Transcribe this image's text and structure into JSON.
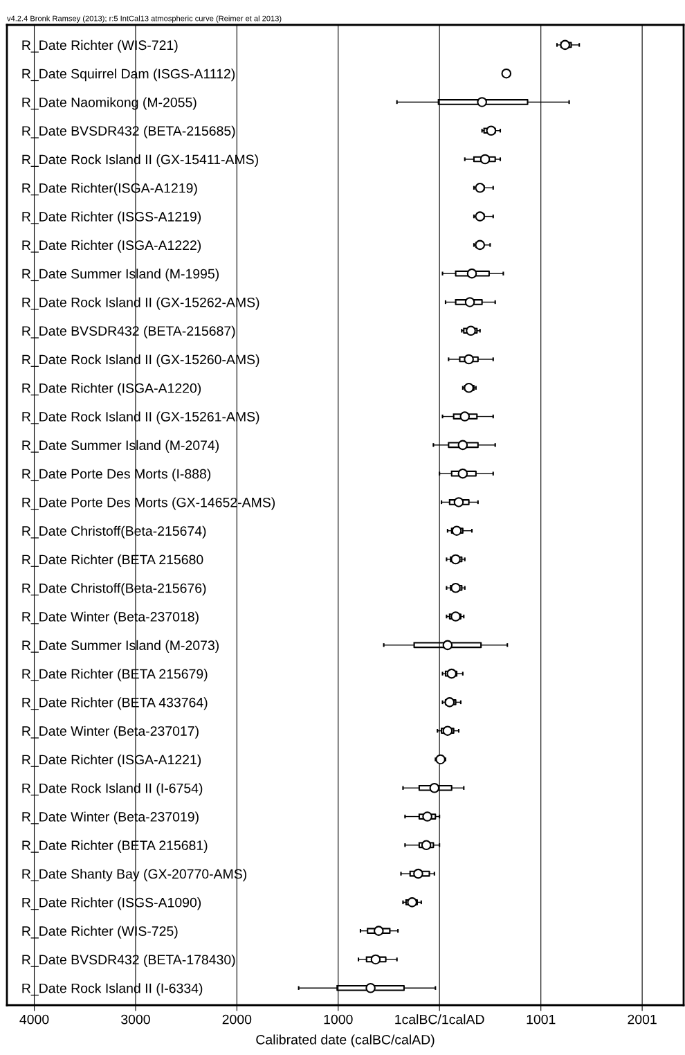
{
  "chart_data": {
    "type": "box",
    "orientation": "horizontal",
    "title": "v4.2.4 Bronk Ramsey (2013); r:5 IntCal13 atmospheric curve (Reimer et al 2013)",
    "xlabel": "Calibrated date (calBC/calAD)",
    "categories": [
      "R_Date Richter (WIS-721)",
      "R_Date Squirrel Dam (ISGS-A1112)",
      "R_Date Naomikong (M-2055)",
      "R_Date BVSDR432 (BETA-215685)",
      "R_Date Rock Island II (GX-15411-AMS)",
      "R_Date Richter(ISGA-A1219)",
      "R_Date Richter (ISGS-A1219)",
      "R_Date Richter (ISGA-A1222)",
      "R_Date Summer Island (M-1995)",
      "R_Date Rock Island II (GX-15262-AMS)",
      "R_Date BVSDR432 (BETA-215687)",
      "R_Date Rock Island II (GX-15260-AMS)",
      "R_Date Richter (ISGA-A1220)",
      "R_Date Rock Island II (GX-15261-AMS)",
      "R_Date Summer Island (M-2074)",
      "R_Date Porte Des Morts (I-888)",
      "R_Date Porte Des Morts (GX-14652-AMS)",
      "R_Date Christoff(Beta-215674)",
      "R_Date Richter (BETA 215680",
      "R_Date Christoff(Beta-215676)",
      "R_Date Winter (Beta-237018)",
      "R_Date Summer Island (M-2073)",
      "R_Date Richter (BETA 215679)",
      "R_Date Richter (BETA 433764)",
      "R_Date Winter (Beta-237017)",
      "R_Date Richter (ISGA-A1221)",
      "R_Date Rock Island II (I-6754)",
      "R_Date Winter (Beta-237019)",
      "R_Date Richter (BETA 215681)",
      "R_Date Shanty Bay (GX-20770-AMS)",
      "R_Date Richter (ISGS-A1090)",
      "R_Date Richter (WIS-725)",
      "R_Date BVSDR432 (BETA-178430)",
      "R_Date Rock Island II (I-6334)"
    ],
    "boxes": [
      {
        "low": 1160,
        "q1": 1200,
        "median": 1240,
        "mean": 1240,
        "q3": 1300,
        "high": 1380
      },
      {
        "low": 630,
        "q1": 630,
        "median": 660,
        "mean": 660,
        "q3": 680,
        "high": 680
      },
      {
        "low": -420,
        "q1": -10,
        "median": 420,
        "mean": 420,
        "q3": 870,
        "high": 1280
      },
      {
        "low": 420,
        "q1": 440,
        "median": 510,
        "mean": 510,
        "q3": 550,
        "high": 600
      },
      {
        "low": 250,
        "q1": 340,
        "median": 450,
        "mean": 450,
        "q3": 550,
        "high": 600
      },
      {
        "low": 340,
        "q1": 370,
        "median": 400,
        "mean": 400,
        "q3": 440,
        "high": 530
      },
      {
        "low": 340,
        "q1": 370,
        "median": 400,
        "mean": 400,
        "q3": 440,
        "high": 530
      },
      {
        "low": 340,
        "q1": 360,
        "median": 400,
        "mean": 400,
        "q3": 420,
        "high": 500
      },
      {
        "low": 30,
        "q1": 160,
        "median": 320,
        "mean": 320,
        "q3": 490,
        "high": 630
      },
      {
        "low": 60,
        "q1": 160,
        "median": 300,
        "mean": 300,
        "q3": 420,
        "high": 550
      },
      {
        "low": 220,
        "q1": 240,
        "median": 310,
        "mean": 310,
        "q3": 370,
        "high": 400
      },
      {
        "low": 90,
        "q1": 200,
        "median": 290,
        "mean": 290,
        "q3": 380,
        "high": 530
      },
      {
        "low": 230,
        "q1": 250,
        "median": 290,
        "mean": 290,
        "q3": 340,
        "high": 360
      },
      {
        "low": 30,
        "q1": 140,
        "median": 250,
        "mean": 250,
        "q3": 370,
        "high": 530
      },
      {
        "low": -60,
        "q1": 90,
        "median": 230,
        "mean": 230,
        "q3": 380,
        "high": 550
      },
      {
        "low": 0,
        "q1": 120,
        "median": 230,
        "mean": 230,
        "q3": 360,
        "high": 530
      },
      {
        "low": 20,
        "q1": 100,
        "median": 190,
        "mean": 190,
        "q3": 290,
        "high": 380
      },
      {
        "low": 80,
        "q1": 120,
        "median": 170,
        "mean": 170,
        "q3": 230,
        "high": 320
      },
      {
        "low": 70,
        "q1": 110,
        "median": 160,
        "mean": 160,
        "q3": 220,
        "high": 250
      },
      {
        "low": 70,
        "q1": 110,
        "median": 160,
        "mean": 160,
        "q3": 220,
        "high": 250
      },
      {
        "low": 70,
        "q1": 100,
        "median": 160,
        "mean": 160,
        "q3": 210,
        "high": 240
      },
      {
        "low": -550,
        "q1": -250,
        "median": 80,
        "mean": 80,
        "q3": 410,
        "high": 670
      },
      {
        "low": 30,
        "q1": 60,
        "median": 120,
        "mean": 120,
        "q3": 170,
        "high": 230
      },
      {
        "low": 30,
        "q1": 60,
        "median": 100,
        "mean": 100,
        "q3": 160,
        "high": 210
      },
      {
        "low": -20,
        "q1": 20,
        "median": 80,
        "mean": 80,
        "q3": 140,
        "high": 190
      },
      {
        "low": -40,
        "q1": -20,
        "median": 10,
        "mean": 10,
        "q3": 40,
        "high": 60
      },
      {
        "low": -360,
        "q1": -200,
        "median": -50,
        "mean": -50,
        "q3": 120,
        "high": 240
      },
      {
        "low": -340,
        "q1": -200,
        "median": -120,
        "mean": -120,
        "q3": -40,
        "high": 0
      },
      {
        "low": -340,
        "q1": -200,
        "median": -130,
        "mean": -130,
        "q3": -60,
        "high": 0
      },
      {
        "low": -380,
        "q1": -290,
        "median": -210,
        "mean": -210,
        "q3": -100,
        "high": -50
      },
      {
        "low": -360,
        "q1": -330,
        "median": -270,
        "mean": -270,
        "q3": -220,
        "high": -180
      },
      {
        "low": -780,
        "q1": -710,
        "median": -600,
        "mean": -600,
        "q3": -490,
        "high": -410
      },
      {
        "low": -800,
        "q1": -720,
        "median": -630,
        "mean": -630,
        "q3": -530,
        "high": -420
      },
      {
        "low": -1390,
        "q1": -1010,
        "median": -680,
        "mean": -680,
        "q3": -350,
        "high": -40
      }
    ],
    "xlim": [
      -4270,
      2410
    ],
    "xticks": [
      {
        "value": -4000,
        "label": "4000"
      },
      {
        "value": -3000,
        "label": "3000"
      },
      {
        "value": -2000,
        "label": "2000"
      },
      {
        "value": -1000,
        "label": "1000"
      },
      {
        "value": 0,
        "label": "1calBC/1calAD"
      },
      1001,
      2001
    ],
    "grid": "x",
    "marker": "circle"
  }
}
